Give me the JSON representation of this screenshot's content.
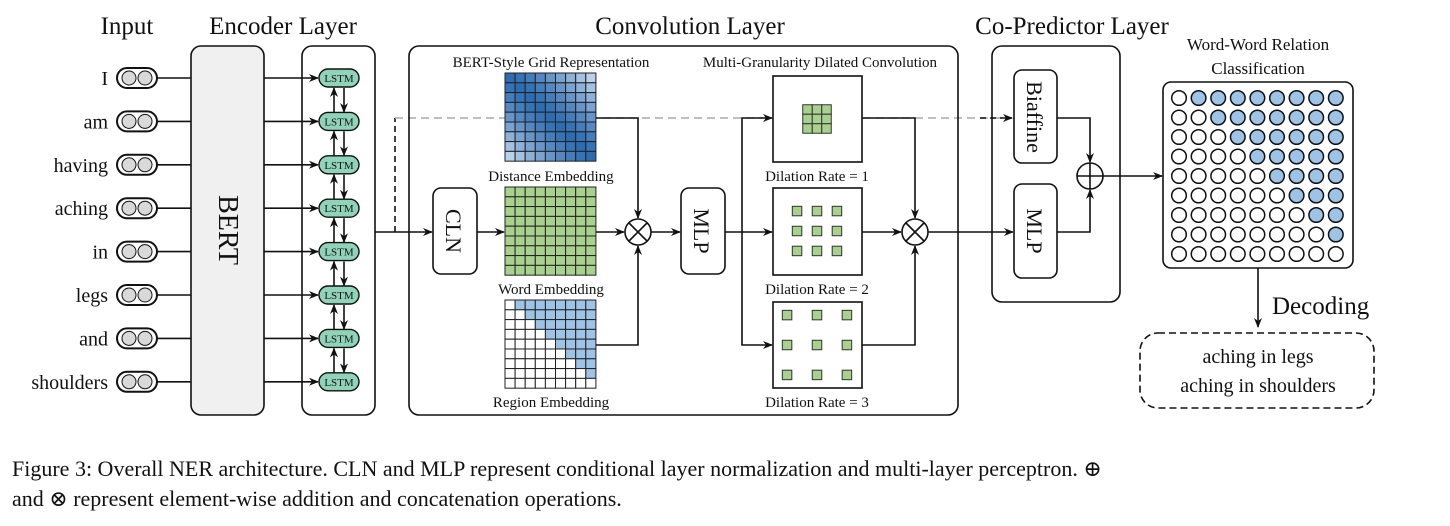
{
  "labels": {
    "input": "Input",
    "encoder": "Encoder Layer",
    "convolution": "Convolution Layer",
    "copredictor": "Co-Predictor Layer",
    "wwrc_line1": "Word-Word Relation",
    "wwrc_line2": "Classification",
    "grid_rep": "BERT-Style Grid Representation",
    "mgdc": "Multi-Granularity Dilated Convolution",
    "distance": "Distance Embedding",
    "word": "Word Embedding",
    "region": "Region Embedding",
    "dil1": "Dilation Rate = 1",
    "dil2": "Dilation Rate = 2",
    "dil3": "Dilation Rate = 3",
    "bert": "BERT",
    "lstm": "LSTM",
    "cln": "CLN",
    "mlp": "MLP",
    "biaffine": "Biaffine",
    "decoding": "Decoding"
  },
  "tokens": [
    "I",
    "am",
    "having",
    "aching",
    "in",
    "legs",
    "and",
    "shoulders"
  ],
  "outputs": [
    "aching in legs",
    "aching in shoulders"
  ],
  "caption": {
    "line1": "Figure 3: Overall NER architecture. CLN and MLP represent conditional layer normalization and multi-layer perceptron. ⊕",
    "line2": "and ⊗ represent element-wise addition and concatenation operations."
  },
  "grid_size": 9,
  "colors": {
    "lstm": "#8fd4b8",
    "token": "#d9d9d9",
    "bert_fill": "#f0f0f0",
    "distance_near": "#2c6cb3",
    "distance_far": "#b9d1ea",
    "word_cell": "#a8d18d",
    "region_cell": "#9dc3e6",
    "relation_filled": "#9dc3e6"
  }
}
